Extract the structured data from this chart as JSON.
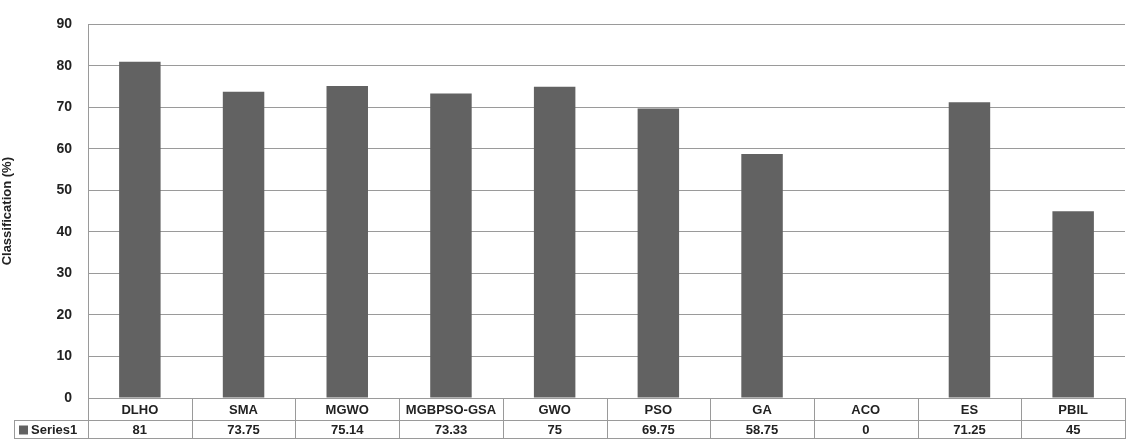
{
  "chart_data": {
    "type": "bar",
    "ylabel": "Classification (%)",
    "categories": [
      "DLHO",
      "SMA",
      "MGWO",
      "MGBPSO-GSA",
      "GWO",
      "PSO",
      "GA",
      "ACO",
      "ES",
      "PBIL"
    ],
    "series": [
      {
        "name": "Series1",
        "color": "#626262",
        "values": [
          81,
          73.75,
          75.14,
          73.33,
          75,
          69.75,
          58.75,
          0,
          71.25,
          45
        ]
      }
    ],
    "ylim": [
      0,
      90
    ],
    "yticks": [
      0,
      10,
      20,
      30,
      40,
      50,
      60,
      70,
      80,
      90
    ],
    "grid": "y",
    "legend": "bottom left",
    "data_labels": true
  }
}
